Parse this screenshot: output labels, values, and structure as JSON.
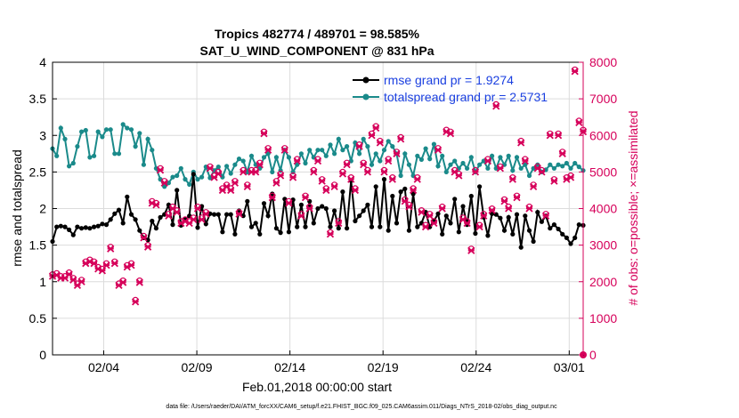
{
  "chart_data": {
    "type": "line",
    "title": "Tropics 482774 / 489701 = 98.585%",
    "subtitle": "SAT_U_WIND_COMPONENT @ 831 hPa",
    "xlabel": "Feb.01,2018 00:00:00 start",
    "ylabel_left": "rmse and totalspread",
    "ylabel_right": "# of obs: o=possible; ×=assimilated",
    "footnote": "data file: /Users/raeder/DAI/ATM_forcXX/CAM6_setup/f.e21.FHIST_BGC.f09_025.CAM6assim.011/Diags_NTrS_2018-02/obs_diag_output.nc",
    "xlim": [
      1,
      29.5
    ],
    "ylim_left": [
      0,
      4
    ],
    "ylim_right": [
      0,
      8000
    ],
    "x_ticks": [
      3.75,
      8.75,
      13.75,
      18.75,
      23.75,
      28.75
    ],
    "x_tick_labels": [
      "02/04",
      "02/09",
      "02/14",
      "02/19",
      "02/24",
      "03/01"
    ],
    "y_ticks_left": [
      0,
      0.5,
      1,
      1.5,
      2,
      2.5,
      3,
      3.5,
      4
    ],
    "y_tick_labels_left": [
      "0",
      "0.5",
      "1",
      "1.5",
      "2",
      "2.5",
      "3",
      "3.5",
      "4"
    ],
    "y_ticks_right": [
      0,
      1000,
      2000,
      3000,
      4000,
      5000,
      6000,
      7000,
      8000
    ],
    "y_tick_labels_right": [
      "0",
      "1000",
      "2000",
      "3000",
      "4000",
      "5000",
      "6000",
      "7000",
      "8000"
    ],
    "colors": {
      "rmse": "#000000",
      "spread": "#1a8a8a",
      "obs": "#d6005a",
      "legend_text": "#1a3fe0"
    },
    "series": [
      {
        "name": "rmse grand pr = 1.9274",
        "axis": "left",
        "values": [
          1.55,
          1.75,
          1.76,
          1.75,
          1.71,
          1.64,
          1.75,
          1.73,
          1.74,
          1.73,
          1.75,
          1.76,
          1.79,
          1.78,
          1.85,
          1.93,
          1.98,
          1.8,
          2.16,
          1.92,
          1.85,
          1.7,
          1.6,
          1.57,
          1.83,
          1.73,
          1.88,
          1.92,
          2.05,
          1.78,
          2.25,
          1.77,
          1.85,
          1.9,
          2.47,
          1.74,
          2.03,
          1.79,
          1.93,
          1.92,
          1.92,
          1.68,
          1.92,
          1.92,
          1.65,
          1.97,
          1.9,
          2.1,
          1.75,
          1.8,
          1.65,
          2.07,
          1.9,
          2.2,
          1.73,
          1.67,
          2.13,
          1.68,
          2.12,
          1.75,
          2.05,
          1.75,
          2.1,
          1.8,
          2.0,
          2.03,
          2.0,
          1.75,
          1.97,
          1.73,
          2.23,
          1.73,
          2.38,
          1.83,
          1.9,
          1.97,
          2.05,
          1.75,
          2.3,
          1.75,
          2.4,
          1.7,
          2.17,
          1.8,
          2.23,
          2.27,
          1.7,
          2.2,
          1.75,
          1.8,
          1.95,
          1.75,
          1.83,
          1.93,
          1.65,
          1.9,
          1.8,
          2.13,
          1.68,
          2.03,
          1.78,
          2.17,
          1.66,
          2.3,
          1.88,
          1.63,
          1.93,
          1.92,
          1.87,
          1.7,
          1.88,
          1.65,
          1.92,
          1.47,
          1.9,
          1.7,
          1.55,
          1.95,
          1.82,
          1.9,
          1.73,
          1.78,
          1.72,
          1.65,
          1.6,
          1.52,
          1.6,
          1.78,
          1.77
        ]
      },
      {
        "name": "totalspread grand pr = 2.5731",
        "axis": "left",
        "values": [
          2.82,
          2.72,
          3.1,
          2.95,
          2.58,
          2.62,
          2.85,
          3.05,
          3.07,
          2.7,
          2.72,
          3.05,
          2.98,
          3.08,
          3.08,
          2.75,
          2.75,
          3.15,
          3.1,
          3.08,
          2.85,
          3.03,
          2.6,
          2.95,
          2.8,
          2.55,
          2.4,
          2.3,
          2.35,
          2.43,
          2.45,
          2.55,
          2.4,
          2.33,
          2.5,
          2.4,
          2.43,
          2.57,
          2.42,
          2.52,
          2.57,
          2.43,
          2.58,
          2.48,
          2.6,
          2.68,
          2.65,
          2.5,
          2.72,
          2.6,
          2.55,
          2.7,
          2.75,
          2.5,
          2.7,
          2.52,
          2.8,
          2.7,
          2.5,
          2.6,
          2.75,
          2.62,
          2.8,
          2.7,
          2.8,
          2.8,
          2.72,
          2.87,
          2.75,
          2.95,
          2.8,
          2.85,
          2.65,
          2.9,
          2.75,
          2.95,
          2.85,
          2.6,
          2.75,
          2.65,
          2.8,
          2.92,
          2.85,
          2.75,
          2.45,
          2.75,
          2.6,
          2.45,
          2.72,
          2.67,
          2.82,
          2.68,
          2.88,
          2.58,
          2.72,
          2.5,
          2.6,
          2.65,
          2.55,
          2.62,
          2.55,
          2.7,
          2.5,
          2.6,
          2.65,
          2.55,
          2.72,
          2.55,
          2.7,
          2.6,
          2.72,
          2.52,
          2.7,
          2.55,
          2.6,
          2.45,
          2.55,
          2.6,
          2.5,
          2.53,
          2.6,
          2.55,
          2.6,
          2.58,
          2.62,
          2.55,
          2.62,
          2.57,
          2.52
        ]
      },
      {
        "name": "obs possible / assimilated",
        "axis": "right",
        "values": [
          2150,
          2180,
          2100,
          2100,
          2200,
          2050,
          1900,
          2000,
          2500,
          2550,
          2500,
          2350,
          2300,
          2450,
          2900,
          2500,
          1900,
          1980,
          2400,
          2450,
          1450,
          1980,
          3200,
          2950,
          4150,
          4100,
          5050,
          4700,
          3800,
          4000,
          3900,
          3600,
          3650,
          3600,
          3700,
          4000,
          3700,
          3850,
          5100,
          4850,
          4950,
          4500,
          4600,
          4500,
          4700,
          3850,
          5000,
          4600,
          5000,
          5000,
          5200,
          6050,
          5600,
          4300,
          4700,
          4900,
          5600,
          4150,
          4850,
          5300,
          3800,
          4300,
          4000,
          5000,
          5300,
          4750,
          4500,
          3300,
          4600,
          3600,
          4950,
          5200,
          4800,
          4500,
          5700,
          5200,
          5000,
          6000,
          6200,
          5800,
          5000,
          5300,
          4800,
          5500,
          5900,
          4200,
          4050,
          4500,
          4800,
          3900,
          3500,
          3800,
          3600,
          5600,
          4000,
          6100,
          6050,
          5000,
          4900,
          3700,
          3600,
          2850,
          5000,
          3500,
          3800,
          5300,
          3950,
          6800,
          5100,
          4200,
          4000,
          4800,
          4300,
          5800,
          5300,
          4000,
          4600,
          5100,
          5000,
          3800,
          6000,
          4750,
          6000,
          5500,
          4800,
          4850,
          7750,
          6350,
          6100
        ]
      }
    ],
    "legend": [
      {
        "label": "rmse grand pr = 1.9274",
        "marker": "filled-circle",
        "color": "#000000"
      },
      {
        "label": "totalspread grand pr = 2.5731",
        "marker": "filled-circle",
        "color": "#1a8a8a"
      }
    ],
    "legend_position": "top-right",
    "zero_obs_marker": {
      "x": 29.5,
      "y": 0
    }
  }
}
